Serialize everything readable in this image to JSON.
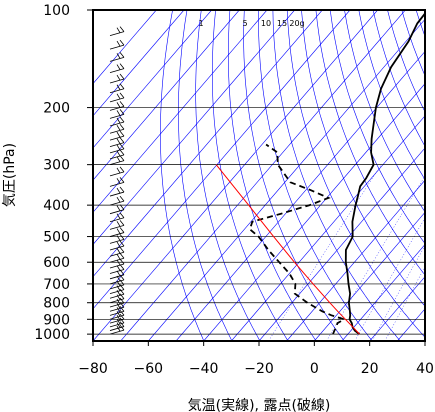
{
  "chart_data": {
    "type": "line",
    "xlabel": "気温(実線), 露点(破線)",
    "ylabel": "気圧(hPa)",
    "x_axis": {
      "scale": "linear",
      "range": [
        -80,
        40
      ],
      "ticks": [
        "−80",
        "−60",
        "−40",
        "−20",
        "0",
        "20",
        "40"
      ]
    },
    "y_axis": {
      "scale": "log",
      "range": [
        100,
        1050
      ],
      "ticks": [
        "100",
        "200",
        "300",
        "400",
        "500",
        "600",
        "700",
        "800",
        "900",
        "1000"
      ],
      "tick_values": [
        100,
        200,
        300,
        400,
        500,
        600,
        700,
        800,
        900,
        1000
      ]
    },
    "mixing_ratio_labels": [
      "1",
      "5",
      "10",
      "15",
      "20g"
    ],
    "grid": true,
    "series": [
      {
        "style": "solid",
        "color": "#000000",
        "points": [
          {
            "p": 1000,
            "t": 14.2
          },
          {
            "p": 975,
            "t": 11.4
          },
          {
            "p": 950,
            "t": 9.4
          },
          {
            "p": 925,
            "t": 8.0
          },
          {
            "p": 900,
            "t": 6.0
          },
          {
            "p": 875,
            "t": 5.0
          },
          {
            "p": 850,
            "t": 3.6
          },
          {
            "p": 800,
            "t": 0.6
          },
          {
            "p": 750,
            "t": -1.8
          },
          {
            "p": 700,
            "t": -5.4
          },
          {
            "p": 650,
            "t": -9.0
          },
          {
            "p": 600,
            "t": -13.1
          },
          {
            "p": 550,
            "t": -16.9
          },
          {
            "p": 500,
            "t": -18.6
          },
          {
            "p": 450,
            "t": -23.3
          },
          {
            "p": 400,
            "t": -27.3
          },
          {
            "p": 375,
            "t": -29.3
          },
          {
            "p": 350,
            "t": -31.5
          },
          {
            "p": 330,
            "t": -31.9
          },
          {
            "p": 300,
            "t": -33.4
          },
          {
            "p": 275,
            "t": -38.1
          },
          {
            "p": 250,
            "t": -42.1
          },
          {
            "p": 225,
            "t": -46.0
          },
          {
            "p": 200,
            "t": -50.3
          },
          {
            "p": 175,
            "t": -54.3
          },
          {
            "p": 150,
            "t": -57.4
          },
          {
            "p": 125,
            "t": -59.1
          },
          {
            "p": 110,
            "t": -61.5
          },
          {
            "p": 100,
            "t": -61.9
          }
        ]
      },
      {
        "style": "dashed",
        "color": "#000000",
        "points": [
          {
            "p": 1000,
            "t": 4.6
          },
          {
            "p": 975,
            "t": 4.0
          },
          {
            "p": 950,
            "t": 3.6
          },
          {
            "p": 925,
            "t": 2.8
          },
          {
            "p": 900,
            "t": 4.0
          },
          {
            "p": 875,
            "t": -1.8
          },
          {
            "p": 850,
            "t": -6.4
          },
          {
            "p": 800,
            "t": -14.4
          },
          {
            "p": 750,
            "t": -21.8
          },
          {
            "p": 700,
            "t": -24.6
          },
          {
            "p": 650,
            "t": -30.0
          },
          {
            "p": 600,
            "t": -37.2
          },
          {
            "p": 550,
            "t": -44.9
          },
          {
            "p": 500,
            "t": -52.6
          },
          {
            "p": 475,
            "t": -58.0
          },
          {
            "p": 450,
            "t": -59.5
          },
          {
            "p": 425,
            "t": -51.6
          },
          {
            "p": 400,
            "t": -43.9
          },
          {
            "p": 380,
            "t": -39.4
          },
          {
            "p": 360,
            "t": -48.0
          },
          {
            "p": 340,
            "t": -58.0
          },
          {
            "p": 300,
            "t": -68.0
          },
          {
            "p": 275,
            "t": -72.0
          },
          {
            "p": 260,
            "t": -78.5
          }
        ]
      },
      {
        "style": "solid",
        "color": "#ff0000",
        "points": [
          {
            "p": 1000,
            "t": 14.2
          },
          {
            "p": 950,
            "t": 9.5
          },
          {
            "p": 900,
            "t": 4.5
          },
          {
            "p": 850,
            "t": -0.8
          },
          {
            "p": 800,
            "t": -6.3
          },
          {
            "p": 700,
            "t": -18.2
          },
          {
            "p": 600,
            "t": -31.7
          },
          {
            "p": 500,
            "t": -47.2
          },
          {
            "p": 400,
            "t": -66.0
          },
          {
            "p": 300,
            "t": -90.3
          }
        ]
      }
    ]
  },
  "axes": {
    "frame_color": "#000000",
    "guide_color": "#0000ff",
    "grid_color": "#000000"
  }
}
